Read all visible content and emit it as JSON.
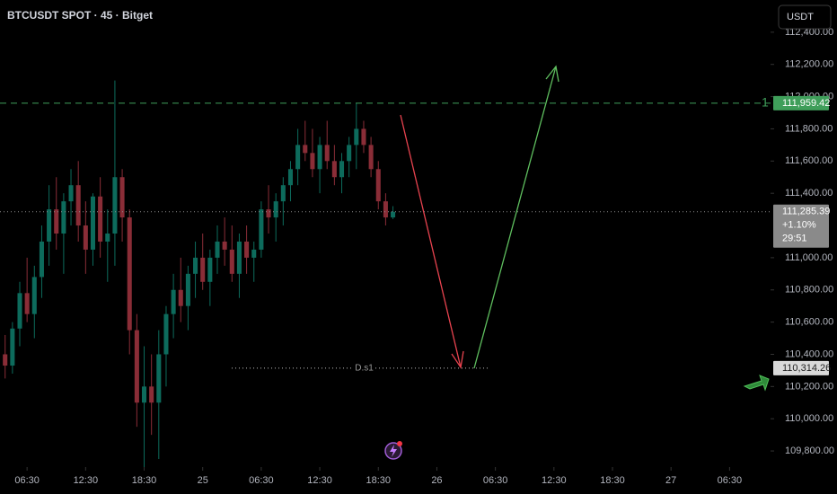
{
  "chart_data": {
    "type": "candlestick",
    "title": "BTCUSDT SPOT · 45 · Bitget",
    "currency_button": "USDT",
    "up_color": "#0d6b5c",
    "down_color": "#8a2d37",
    "open": [
      110400,
      110330,
      110560,
      110780,
      110650,
      110880,
      111100,
      111300,
      111150,
      111350,
      111450,
      111200,
      111050,
      111380,
      111100,
      111150,
      111500,
      111250,
      110550,
      110100,
      110200,
      110100,
      110400,
      110650,
      110800,
      110700,
      110900,
      111000,
      110850,
      111000,
      111100,
      111050,
      110900,
      111100,
      111000,
      111050,
      111300,
      111250,
      111350,
      111450,
      111550,
      111700,
      111650,
      111550,
      111700,
      111600,
      111500,
      111600,
      111700,
      111800,
      111700,
      111550,
      111350,
      111250
    ],
    "high": [
      110520,
      110600,
      110850,
      111000,
      110950,
      111200,
      111450,
      111500,
      111400,
      111550,
      111600,
      111350,
      111400,
      111500,
      111300,
      112100,
      111550,
      111300,
      110650,
      110450,
      110400,
      110550,
      110700,
      110900,
      111000,
      110950,
      111100,
      111150,
      111050,
      111200,
      111250,
      111200,
      111150,
      111200,
      111100,
      111350,
      111450,
      111400,
      111500,
      111600,
      111800,
      111850,
      111800,
      111750,
      111850,
      111700,
      111650,
      111750,
      111960,
      111850,
      111750,
      111600,
      111400,
      111320
    ],
    "low": [
      110250,
      110280,
      110450,
      110600,
      110500,
      110750,
      110950,
      111050,
      110900,
      111200,
      111100,
      110900,
      110950,
      111000,
      110850,
      110950,
      111100,
      110400,
      109950,
      109700,
      109900,
      109750,
      110200,
      110500,
      110600,
      110550,
      110750,
      110800,
      110700,
      110900,
      110950,
      110850,
      110750,
      110900,
      110850,
      111000,
      111150,
      111100,
      111200,
      111350,
      111450,
      111600,
      111500,
      111400,
      111550,
      111450,
      111400,
      111500,
      111550,
      111650,
      111500,
      111300,
      111200,
      111240
    ],
    "close": [
      110330,
      110560,
      110780,
      110650,
      110880,
      111100,
      111300,
      111150,
      111350,
      111450,
      111200,
      111050,
      111380,
      111100,
      111150,
      111500,
      111250,
      110550,
      110100,
      110200,
      110100,
      110400,
      110650,
      110800,
      110700,
      110900,
      111000,
      110850,
      111000,
      111100,
      111050,
      110900,
      111100,
      111000,
      111050,
      111300,
      111250,
      111350,
      111450,
      111550,
      111700,
      111650,
      111550,
      111700,
      111600,
      111500,
      111600,
      111700,
      111800,
      111700,
      111550,
      111350,
      111250,
      111285
    ],
    "xlim": [
      -0.7,
      104.6
    ],
    "xticks": [
      {
        "value": 3,
        "label": "06:30"
      },
      {
        "value": 11,
        "label": "12:30"
      },
      {
        "value": 19,
        "label": "18:30"
      },
      {
        "value": 27,
        "label": "25"
      },
      {
        "value": 35,
        "label": "06:30"
      },
      {
        "value": 43,
        "label": "12:30"
      },
      {
        "value": 51,
        "label": "18:30"
      },
      {
        "value": 59,
        "label": "26"
      },
      {
        "value": 67,
        "label": "06:30"
      },
      {
        "value": 75,
        "label": "12:30"
      },
      {
        "value": 83,
        "label": "18:30"
      },
      {
        "value": 91,
        "label": "27"
      },
      {
        "value": 99,
        "label": "06:30"
      }
    ],
    "ylim": [
      109700,
      112600
    ],
    "yticks": [
      {
        "value": 112400,
        "label": "112,400.00"
      },
      {
        "value": 112200,
        "label": "112,200.00"
      },
      {
        "value": 112000,
        "label": "112,000.00"
      },
      {
        "value": 111800,
        "label": "111,800.00"
      },
      {
        "value": 111600,
        "label": "111,600.00"
      },
      {
        "value": 111400,
        "label": "111,400.00"
      },
      {
        "value": 111000,
        "label": "111,000.00"
      },
      {
        "value": 110800,
        "label": "110,800.00"
      },
      {
        "value": 110600,
        "label": "110,600.00"
      },
      {
        "value": 110400,
        "label": "110,400.00"
      },
      {
        "value": 110200,
        "label": "110,200.00"
      },
      {
        "value": 110000,
        "label": "110,000.00"
      },
      {
        "value": 109800,
        "label": "109,800.00"
      }
    ],
    "levels": [
      {
        "value": 111959.42,
        "label": "111,959.42",
        "color": "#3f9e5a",
        "tag": "1"
      },
      {
        "value": 111285.39,
        "label": "111,285.39",
        "color": "#8a8a8a",
        "change": "+1.10%",
        "countdown": "29:51"
      },
      {
        "value": 110314.26,
        "label": "110,314.26",
        "color": "#bdbdbd",
        "name": "D.s1"
      }
    ]
  }
}
